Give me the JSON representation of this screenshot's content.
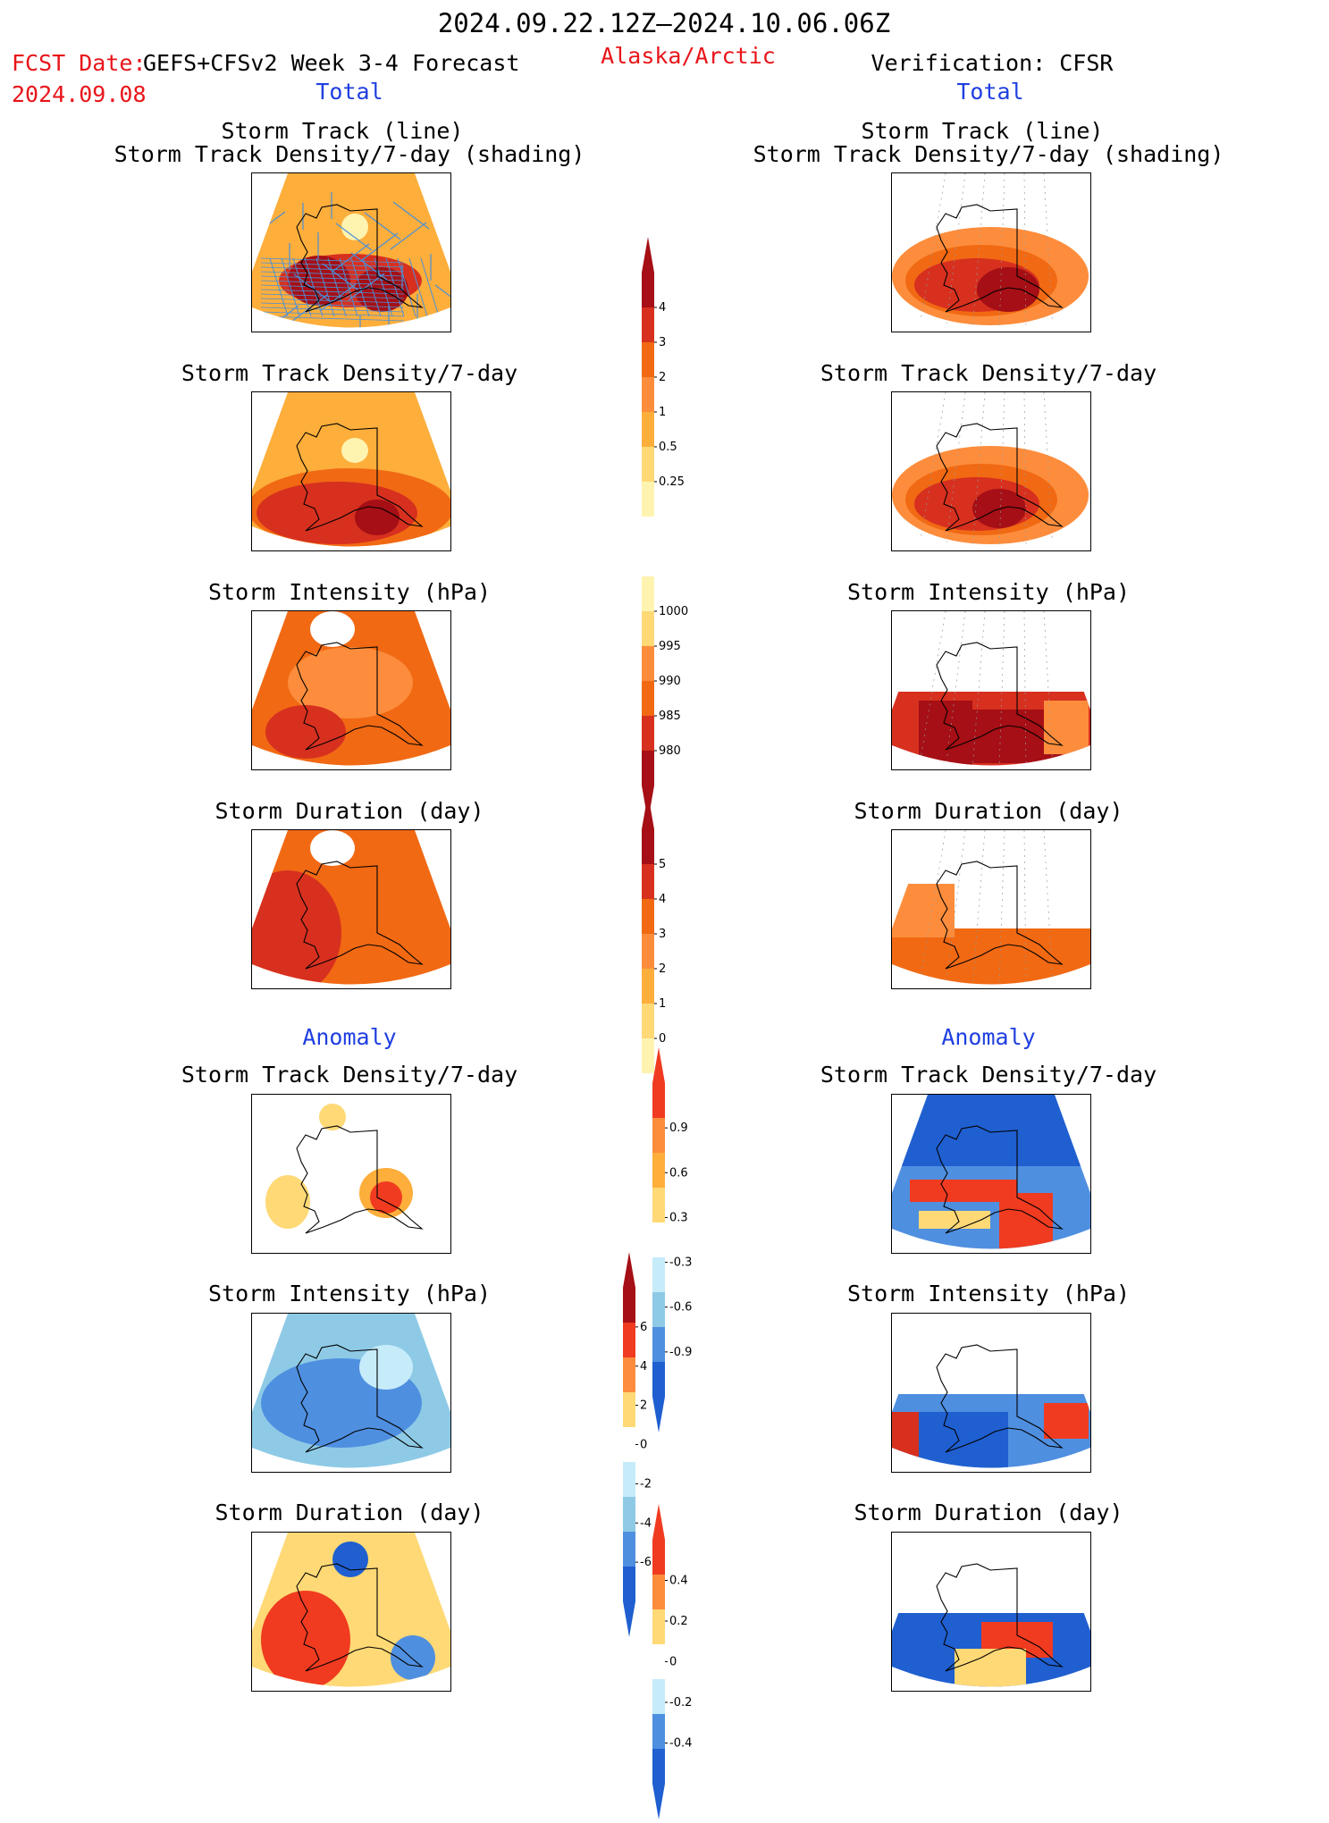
{
  "header": {
    "date_range": "2024.09.22.12Z—2024.10.06.06Z",
    "fcst_label": "FCST Date:",
    "fcst_model": "GEFS+CFSv2 Week 3-4 Forecast",
    "fcst_date": "2024.09.08",
    "region": "Alaska/Arctic",
    "verification": "Verification: CFSR"
  },
  "sections": {
    "total_left": "Total",
    "total_right": "Total",
    "anomaly_left": "Anomaly",
    "anomaly_right": "Anomaly"
  },
  "titles": {
    "track_line": "Storm Track (line)",
    "track_shading": "Storm Track Density/7-day (shading)",
    "density": "Storm Track Density/7-day",
    "intensity": "Storm Intensity (hPa)",
    "duration": "Storm Duration (day)"
  },
  "colorbars": {
    "density": {
      "labels": [
        "4",
        "3",
        "2",
        "1",
        "0.5",
        "0.25"
      ],
      "colors": [
        "#a50f15",
        "#d7301f",
        "#f16913",
        "#fd8d3c",
        "#fdae3b",
        "#fed976",
        "#fff3b0"
      ]
    },
    "intensity": {
      "labels": [
        "1000",
        "995",
        "990",
        "985",
        "980"
      ],
      "colors": [
        "#fff3b0",
        "#fed976",
        "#fd8d3c",
        "#f16913",
        "#d7301f",
        "#a50f15"
      ]
    },
    "duration": {
      "labels": [
        "5",
        "4",
        "3",
        "2",
        "1",
        "0"
      ],
      "colors": [
        "#a50f15",
        "#d7301f",
        "#f16913",
        "#fd8d3c",
        "#fdae3b",
        "#fed976",
        "#fff3b0"
      ]
    },
    "anom_density": {
      "labels": [
        "0.9",
        "0.6",
        "0.3",
        "-0.3",
        "-0.6",
        "-0.9"
      ],
      "colors": [
        "#f03b20",
        "#fd8d3c",
        "#fdae3b",
        "#fed976",
        "#ffffff",
        "#c6ecfa",
        "#8ecae6",
        "#4f8fe0",
        "#1f5fd0"
      ]
    },
    "anom_intensity": {
      "labels": [
        "6",
        "4",
        "2",
        "0",
        "-2",
        "-4",
        "-6"
      ],
      "colors": [
        "#a50f15",
        "#f03b20",
        "#fd8d3c",
        "#fed976",
        "#ffffff",
        "#c6ecfa",
        "#8ecae6",
        "#4f8fe0",
        "#1f5fd0"
      ]
    },
    "anom_duration": {
      "labels": [
        "0.4",
        "0.2",
        "0",
        "-0.2",
        "-0.4"
      ],
      "colors": [
        "#f03b20",
        "#fd8d3c",
        "#fed976",
        "#ffffff",
        "#c6ecfa",
        "#4f8fe0",
        "#1f5fd0"
      ]
    }
  }
}
